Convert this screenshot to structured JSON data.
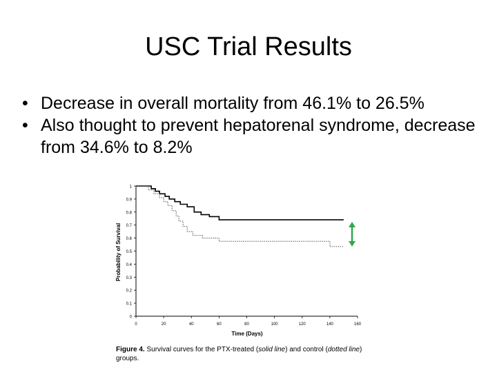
{
  "slide": {
    "title": "USC Trial Results",
    "bullets": [
      "Decrease in overall mortality from 46.1% to 26.5%",
      "Also thought to prevent hepatorenal syndrome, decrease from 34.6% to 8.2%"
    ],
    "bullet_glyph": "•"
  },
  "caption": {
    "label": "Figure 4.",
    "part1": "Survival curves for the PTX-treated (",
    "solid": "solid line",
    "part2": ") and control (",
    "dotted": "dotted line",
    "part3": ") groups."
  },
  "colors": {
    "arrow": "#2ea84a"
  },
  "chart_data": {
    "type": "line",
    "xlabel": "Time (Days)",
    "ylabel": "Probability of Survival",
    "xlim": [
      0,
      160
    ],
    "ylim": [
      0,
      1
    ],
    "xticks": [
      0,
      20,
      40,
      60,
      80,
      100,
      120,
      140,
      160
    ],
    "yticks": [
      "0",
      "0.1",
      "0.2",
      "0.3",
      "0.4",
      "0.5",
      "0.6",
      "0.7",
      "0.8",
      "0.9",
      "1"
    ],
    "series": [
      {
        "name": "PTX-treated",
        "style": "solid",
        "points": [
          [
            0,
            1
          ],
          [
            11,
            1
          ],
          [
            11,
            0.98
          ],
          [
            14,
            0.98
          ],
          [
            14,
            0.96
          ],
          [
            17,
            0.96
          ],
          [
            17,
            0.94
          ],
          [
            21,
            0.94
          ],
          [
            21,
            0.92
          ],
          [
            24,
            0.92
          ],
          [
            24,
            0.9
          ],
          [
            28,
            0.9
          ],
          [
            28,
            0.88
          ],
          [
            32,
            0.88
          ],
          [
            32,
            0.86
          ],
          [
            37,
            0.86
          ],
          [
            37,
            0.84
          ],
          [
            42,
            0.84
          ],
          [
            42,
            0.8
          ],
          [
            47,
            0.8
          ],
          [
            47,
            0.78
          ],
          [
            53,
            0.78
          ],
          [
            53,
            0.765
          ],
          [
            60,
            0.765
          ],
          [
            60,
            0.74
          ],
          [
            150,
            0.74
          ]
        ]
      },
      {
        "name": "Control",
        "style": "dotted",
        "points": [
          [
            0,
            1
          ],
          [
            9,
            1
          ],
          [
            9,
            0.97
          ],
          [
            13,
            0.97
          ],
          [
            13,
            0.94
          ],
          [
            17,
            0.94
          ],
          [
            17,
            0.91
          ],
          [
            20,
            0.91
          ],
          [
            20,
            0.88
          ],
          [
            23,
            0.88
          ],
          [
            23,
            0.85
          ],
          [
            26,
            0.85
          ],
          [
            26,
            0.81
          ],
          [
            29,
            0.81
          ],
          [
            29,
            0.77
          ],
          [
            31,
            0.77
          ],
          [
            31,
            0.73
          ],
          [
            34,
            0.73
          ],
          [
            34,
            0.69
          ],
          [
            37,
            0.69
          ],
          [
            37,
            0.65
          ],
          [
            41,
            0.65
          ],
          [
            41,
            0.62
          ],
          [
            48,
            0.62
          ],
          [
            48,
            0.6
          ],
          [
            60,
            0.6
          ],
          [
            60,
            0.575
          ],
          [
            140,
            0.575
          ],
          [
            140,
            0.535
          ],
          [
            150,
            0.535
          ]
        ]
      }
    ]
  }
}
